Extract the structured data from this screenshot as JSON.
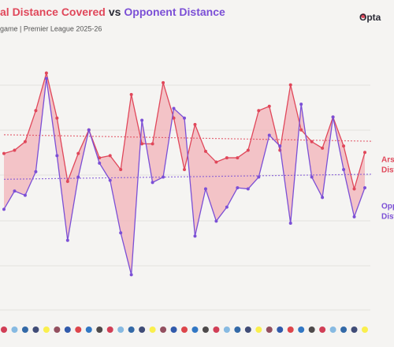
{
  "chart_data": {
    "type": "line",
    "title_parts": [
      {
        "text": "al Distance Covered",
        "color": "#e0475a"
      },
      {
        "text": "vs",
        "color": "#2a2a35"
      },
      {
        "text": "Opponent Distance",
        "color": "#7b4fd6"
      }
    ],
    "subtitle": "game | Premier League 2025-26",
    "logo": "Opta",
    "ylim": [
      95,
      120
    ],
    "fill_color": "#f2b3b8",
    "series": [
      {
        "name": [
          "Ars",
          "Dist"
        ],
        "color": "#e0475a",
        "values": [
          110.1,
          110.4,
          111.2,
          114.1,
          117.6,
          113.4,
          107.5,
          110.1,
          112.3,
          109.7,
          109.9,
          108.6,
          115.6,
          111.0,
          111.0,
          116.7,
          113.4,
          108.6,
          112.8,
          110.3,
          109.3,
          109.7,
          109.7,
          110.4,
          114.1,
          114.5,
          110.4,
          116.5,
          112.3,
          111.2,
          110.6,
          113.5,
          110.8,
          106.8,
          110.2
        ]
      },
      {
        "name": [
          "Opp",
          "Dist"
        ],
        "color": "#7b4fd6",
        "values": [
          104.9,
          106.6,
          106.2,
          108.4,
          117.1,
          109.9,
          102.0,
          107.9,
          112.3,
          109.2,
          107.6,
          102.7,
          98.8,
          113.2,
          107.4,
          107.9,
          114.3,
          113.4,
          102.4,
          106.8,
          103.8,
          105.1,
          106.9,
          106.8,
          107.9,
          111.8,
          110.8,
          103.6,
          114.7,
          107.9,
          106.0,
          113.5,
          108.6,
          104.2,
          106.9
        ]
      }
    ]
  }
}
